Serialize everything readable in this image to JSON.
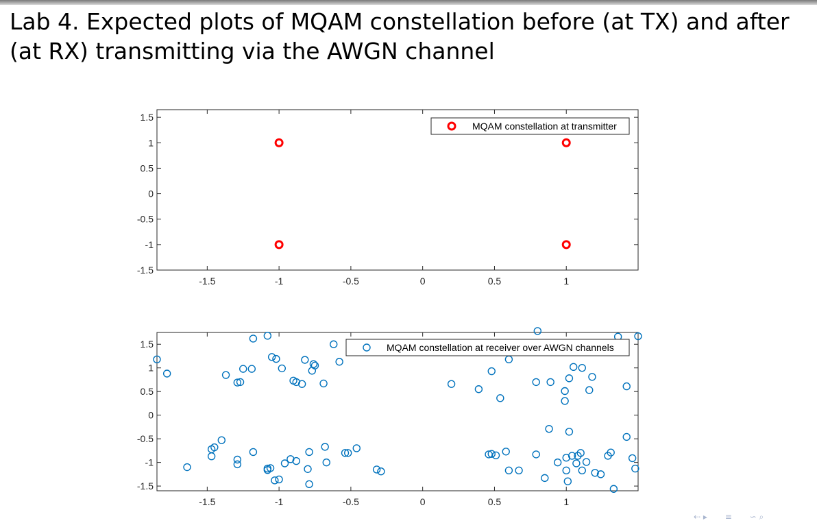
{
  "slide": {
    "title": "Lab 4. Expected plots of MQAM constellation before (at TX) and after (at RX) transmitting via the AWGN channel"
  },
  "nav": {
    "icons": [
      "section-nav-icon",
      "subsection-nav-icon",
      "menu-icon",
      "search-icon"
    ]
  },
  "chart_data": [
    {
      "type": "scatter",
      "title": "",
      "xlabel": "",
      "ylabel": "",
      "xlim": [
        -1.85,
        1.5
      ],
      "ylim": [
        -1.5,
        1.65
      ],
      "xticks": [
        -1.5,
        -1,
        -0.5,
        0,
        0.5,
        1
      ],
      "xtick_labels": [
        "-1.5",
        "-1",
        "-0.5",
        "0",
        "0.5",
        "1"
      ],
      "yticks": [
        1.5,
        1,
        0.5,
        0,
        -0.5,
        -1,
        -1.5
      ],
      "ytick_labels": [
        "1.5",
        "1",
        "0.5",
        "0",
        "-0.5",
        "-1",
        "-1.5"
      ],
      "grid": false,
      "legend": "top-right",
      "series": [
        {
          "name": "MQAM constellation at transmitter",
          "color": "#ff0000",
          "marker": "circle",
          "x": [
            -1,
            1,
            -1,
            1
          ],
          "y": [
            1,
            1,
            -1,
            -1
          ]
        }
      ]
    },
    {
      "type": "scatter",
      "title": "",
      "xlabel": "",
      "ylabel": "",
      "xlim": [
        -1.85,
        1.5
      ],
      "ylim": [
        -1.6,
        1.75
      ],
      "xticks": [
        -1.5,
        -1,
        -0.5,
        0,
        0.5,
        1
      ],
      "xtick_labels": [
        "-1.5",
        "-1",
        "-0.5",
        "0",
        "0.5",
        "1"
      ],
      "yticks": [
        1.5,
        1,
        0.5,
        0,
        -0.5,
        -1,
        -1.5
      ],
      "ytick_labels": [
        "1.5",
        "1",
        "0.5",
        "0",
        "-0.5",
        "-1",
        "-1.5"
      ],
      "grid": false,
      "legend": "top-right",
      "series": [
        {
          "name": "MQAM constellation at receiver over AWGN channels",
          "color": "#0072bd",
          "marker": "circle",
          "x": [
            -1.85,
            -1.78,
            -1.37,
            -1.29,
            -1.27,
            -1.25,
            -1.19,
            -1.18,
            -1.08,
            -1.05,
            -1.02,
            -0.98,
            -0.9,
            -0.88,
            -0.84,
            -0.82,
            -0.77,
            -0.76,
            -0.75,
            -0.69,
            -0.62,
            -0.58,
            0.2,
            0.39,
            0.48,
            0.54,
            0.6,
            0.79,
            0.8,
            0.89,
            0.99,
            0.99,
            1.02,
            1.04,
            1.05,
            1.11,
            1.16,
            1.18,
            1.36,
            1.42,
            1.5,
            -1.64,
            -1.47,
            -1.47,
            -1.45,
            -1.4,
            -1.29,
            -1.29,
            -1.18,
            -1.08,
            -1.08,
            -1.06,
            -1.03,
            -1.0,
            -0.96,
            -0.92,
            -0.88,
            -0.8,
            -0.79,
            -0.79,
            -0.68,
            -0.67,
            -0.54,
            -0.52,
            -0.46,
            -0.32,
            -0.29,
            0.46,
            0.48,
            0.51,
            0.58,
            0.6,
            0.67,
            0.79,
            0.85,
            0.88,
            0.94,
            1.0,
            1.0,
            1.01,
            1.02,
            1.04,
            1.07,
            1.08,
            1.1,
            1.11,
            1.14,
            1.2,
            1.24,
            1.29,
            1.31,
            1.33,
            1.42,
            1.46,
            1.48
          ],
          "y": [
            1.18,
            0.88,
            0.85,
            0.69,
            0.7,
            0.98,
            0.98,
            1.62,
            1.68,
            1.23,
            1.19,
            0.99,
            0.73,
            0.7,
            0.66,
            1.17,
            0.94,
            1.08,
            1.05,
            0.67,
            1.5,
            1.13,
            0.66,
            0.55,
            0.93,
            0.36,
            1.18,
            0.7,
            1.78,
            0.7,
            0.51,
            0.3,
            0.78,
            1.35,
            1.02,
            1.0,
            0.53,
            0.81,
            1.66,
            0.61,
            1.67,
            -1.1,
            -0.87,
            -0.72,
            -0.68,
            -0.53,
            -0.94,
            -1.04,
            -0.78,
            -1.13,
            -1.16,
            -1.12,
            -1.38,
            -1.36,
            -1.02,
            -0.93,
            -0.97,
            -1.14,
            -0.78,
            -1.46,
            -0.67,
            -1.0,
            -0.8,
            -0.8,
            -0.7,
            -1.15,
            -1.19,
            -0.83,
            -0.82,
            -0.85,
            -0.77,
            -1.17,
            -1.17,
            -0.83,
            -1.33,
            -0.29,
            -1.0,
            -1.17,
            -0.9,
            -1.4,
            -0.35,
            -0.86,
            -1.02,
            -0.86,
            -0.8,
            -1.17,
            -0.99,
            -1.22,
            -1.25,
            -0.86,
            -0.79,
            -1.56,
            -0.46,
            -0.91,
            -1.13
          ]
        }
      ]
    }
  ]
}
